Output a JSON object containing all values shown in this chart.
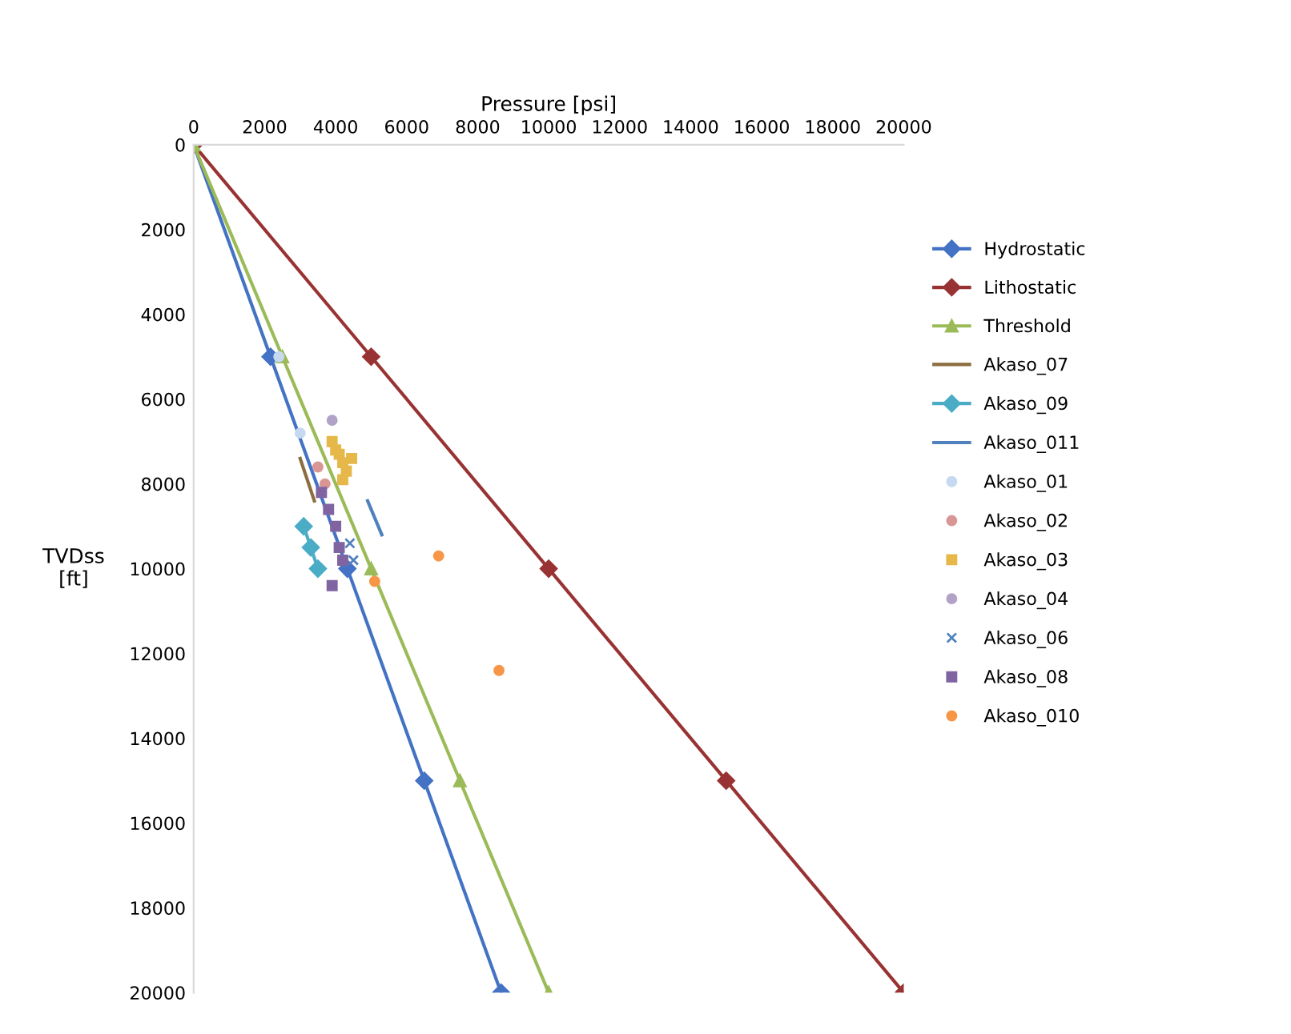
{
  "chart_data": {
    "type": "line",
    "xlabel": "Pressure [psi]",
    "ylabel": "TVDss\n[ft]",
    "xlim": [
      0,
      20000
    ],
    "xticks": [
      0,
      2000,
      4000,
      6000,
      8000,
      10000,
      12000,
      14000,
      16000,
      18000,
      20000
    ],
    "ylim": [
      20000,
      0
    ],
    "yticks": [
      0,
      2000,
      4000,
      6000,
      8000,
      10000,
      12000,
      14000,
      16000,
      18000,
      20000
    ],
    "grid": false,
    "legend": "right",
    "series": [
      {
        "name": "Hydrostatic",
        "marker": "diamond",
        "color": "#4472c4",
        "x": [
          0,
          2165,
          4330,
          6495,
          8660
        ],
        "values": [
          0,
          5000,
          10000,
          15000,
          20000
        ]
      },
      {
        "name": "Lithostatic",
        "marker": "diamond",
        "color": "#993333",
        "x": [
          0,
          5000,
          10000,
          15000,
          20000
        ],
        "values": [
          0,
          5000,
          10000,
          15000,
          20000
        ]
      },
      {
        "name": "Threshold",
        "marker": "triangle",
        "color": "#9bbb59",
        "x": [
          0,
          2500,
          5000,
          7500,
          10000
        ],
        "values": [
          0,
          5000,
          10000,
          15000,
          20000
        ]
      },
      {
        "name": "Akaso_07",
        "type": "line",
        "marker": "none",
        "color": "#8c6d3f",
        "x": [
          3000,
          3200,
          3400
        ],
        "values": [
          7400,
          7900,
          8400
        ]
      },
      {
        "name": "Akaso_09",
        "type": "line",
        "marker": "diamond",
        "color": "#4bacc6",
        "x": [
          3100,
          3300,
          3500
        ],
        "values": [
          9000,
          9500,
          10000
        ]
      },
      {
        "name": "Akaso_011",
        "type": "line",
        "marker": "none",
        "color": "#4f81bd",
        "x": [
          4900,
          5100,
          5300
        ],
        "values": [
          8400,
          8800,
          9200
        ]
      },
      {
        "name": "Akaso_01",
        "type": "scatter",
        "marker": "circle",
        "color": "#c6d9f1",
        "x": [
          2400,
          3000
        ],
        "values": [
          5000,
          6800
        ]
      },
      {
        "name": "Akaso_02",
        "type": "scatter",
        "marker": "circle",
        "color": "#d99694",
        "x": [
          3500,
          3700
        ],
        "values": [
          7600,
          8000
        ]
      },
      {
        "name": "Akaso_03",
        "type": "scatter",
        "marker": "square",
        "color": "#e6b84a",
        "x": [
          3900,
          4000,
          4100,
          4200,
          4300,
          4200,
          4450
        ],
        "values": [
          7000,
          7200,
          7300,
          7500,
          7700,
          7900,
          7400
        ]
      },
      {
        "name": "Akaso_04",
        "type": "scatter",
        "marker": "circle",
        "color": "#b3a2c7",
        "x": [
          3900
        ],
        "values": [
          6500
        ]
      },
      {
        "name": "Akaso_06",
        "type": "scatter",
        "marker": "cross",
        "color": "#4f81bd",
        "x": [
          4400,
          4500
        ],
        "values": [
          9400,
          9800
        ]
      },
      {
        "name": "Akaso_08",
        "type": "scatter",
        "marker": "square",
        "color": "#8064a2",
        "x": [
          3600,
          3800,
          4000,
          4100,
          4200,
          3900
        ],
        "values": [
          8200,
          8600,
          9000,
          9500,
          9800,
          10400
        ]
      },
      {
        "name": "Akaso_010",
        "type": "scatter",
        "marker": "circle",
        "color": "#f79646",
        "x": [
          5100,
          6900,
          8600
        ],
        "values": [
          10300,
          9700,
          12400
        ]
      }
    ]
  }
}
